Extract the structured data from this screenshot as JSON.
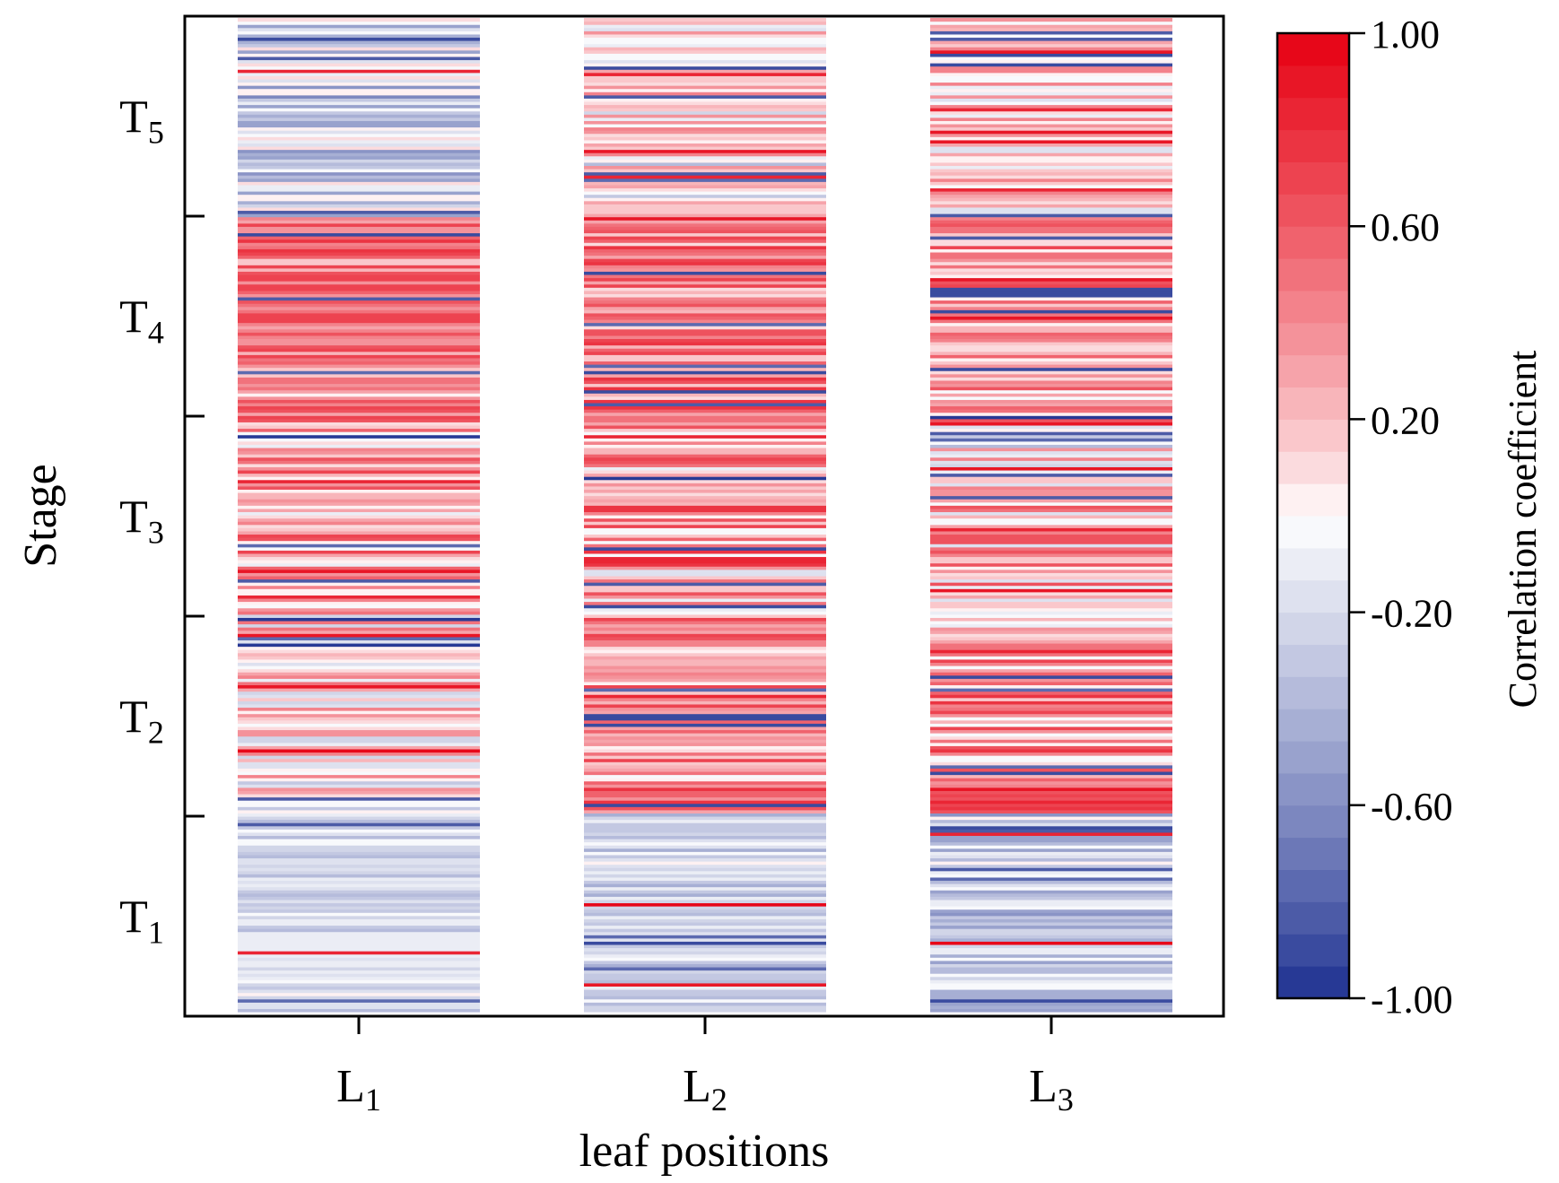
{
  "chart_data": {
    "type": "heatmap",
    "title": "",
    "xlabel": "leaf positions",
    "ylabel": "Stage",
    "x_categories": [
      {
        "main": "L",
        "sub": "1"
      },
      {
        "main": "L",
        "sub": "2"
      },
      {
        "main": "L",
        "sub": "3"
      }
    ],
    "y_categories": [
      {
        "main": "T",
        "sub": "1"
      },
      {
        "main": "T",
        "sub": "2"
      },
      {
        "main": "T",
        "sub": "3"
      },
      {
        "main": "T",
        "sub": "4"
      },
      {
        "main": "T",
        "sub": "5"
      }
    ],
    "colorbar": {
      "label": "Correlation coefficient",
      "range": [
        -1.0,
        1.0
      ],
      "ticks": [
        "1.00",
        "0.60",
        "0.20",
        "-0.20",
        "-0.60",
        "-1.00"
      ],
      "tick_values": [
        1.0,
        0.6,
        0.2,
        -0.2,
        -0.6,
        -1.0
      ],
      "levels": 30,
      "low_color": "#1a2d8f",
      "mid_color": "#ffffff",
      "high_color": "#e60012"
    },
    "rows_per_stage": 62,
    "stage_profiles": {
      "L1": [
        {
          "stage": "T1",
          "mean": -0.2,
          "spread": 0.18
        },
        {
          "stage": "T2",
          "mean": 0.1,
          "spread": 0.4
        },
        {
          "stage": "T3",
          "mean": 0.3,
          "spread": 0.4
        },
        {
          "stage": "T4",
          "mean": 0.45,
          "spread": 0.3
        },
        {
          "stage": "T5",
          "mean": -0.25,
          "spread": 0.4
        }
      ],
      "L2": [
        {
          "stage": "T1",
          "mean": -0.25,
          "spread": 0.2
        },
        {
          "stage": "T2",
          "mean": 0.4,
          "spread": 0.4
        },
        {
          "stage": "T3",
          "mean": 0.35,
          "spread": 0.5
        },
        {
          "stage": "T4",
          "mean": 0.45,
          "spread": 0.35
        },
        {
          "stage": "T5",
          "mean": 0.05,
          "spread": 0.4
        }
      ],
      "L3": [
        {
          "stage": "T1",
          "mean": -0.25,
          "spread": 0.3
        },
        {
          "stage": "T2",
          "mean": 0.35,
          "spread": 0.45
        },
        {
          "stage": "T3",
          "mean": 0.15,
          "spread": 0.55
        },
        {
          "stage": "T4",
          "mean": 0.35,
          "spread": 0.4
        },
        {
          "stage": "T5",
          "mean": 0.15,
          "spread": 0.35
        }
      ]
    },
    "grid": false,
    "legend": "colorbar-right"
  }
}
